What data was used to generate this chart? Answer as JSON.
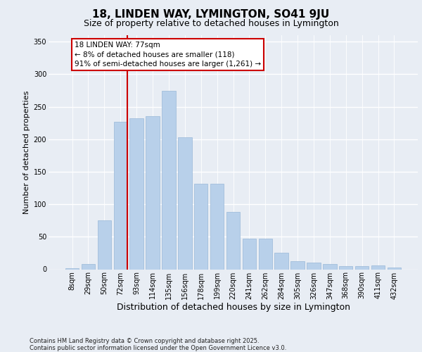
{
  "title1": "18, LINDEN WAY, LYMINGTON, SO41 9JU",
  "title2": "Size of property relative to detached houses in Lymington",
  "xlabel": "Distribution of detached houses by size in Lymington",
  "ylabel": "Number of detached properties",
  "categories": [
    "8sqm",
    "29sqm",
    "50sqm",
    "72sqm",
    "93sqm",
    "114sqm",
    "135sqm",
    "156sqm",
    "178sqm",
    "199sqm",
    "220sqm",
    "241sqm",
    "262sqm",
    "284sqm",
    "305sqm",
    "326sqm",
    "347sqm",
    "368sqm",
    "390sqm",
    "411sqm",
    "432sqm"
  ],
  "values": [
    2,
    8,
    75,
    227,
    232,
    235,
    275,
    203,
    132,
    132,
    88,
    47,
    47,
    25,
    12,
    10,
    8,
    5,
    5,
    6,
    3
  ],
  "bar_color": "#b8d0ea",
  "bar_edge_color": "#99b8d8",
  "vline_color": "#cc0000",
  "vline_x": 3.43,
  "annotation_text": "18 LINDEN WAY: 77sqm\n← 8% of detached houses are smaller (118)\n91% of semi-detached houses are larger (1,261) →",
  "annotation_box_color": "#ffffff",
  "annotation_box_edge_color": "#cc0000",
  "ylim": [
    0,
    360
  ],
  "yticks": [
    0,
    50,
    100,
    150,
    200,
    250,
    300,
    350
  ],
  "bg_color": "#e8edf4",
  "grid_color": "#ffffff",
  "footer": "Contains HM Land Registry data © Crown copyright and database right 2025.\nContains public sector information licensed under the Open Government Licence v3.0.",
  "title1_fontsize": 11,
  "title2_fontsize": 9,
  "xlabel_fontsize": 9,
  "ylabel_fontsize": 8,
  "tick_fontsize": 7,
  "annotation_fontsize": 7.5,
  "footer_fontsize": 6
}
